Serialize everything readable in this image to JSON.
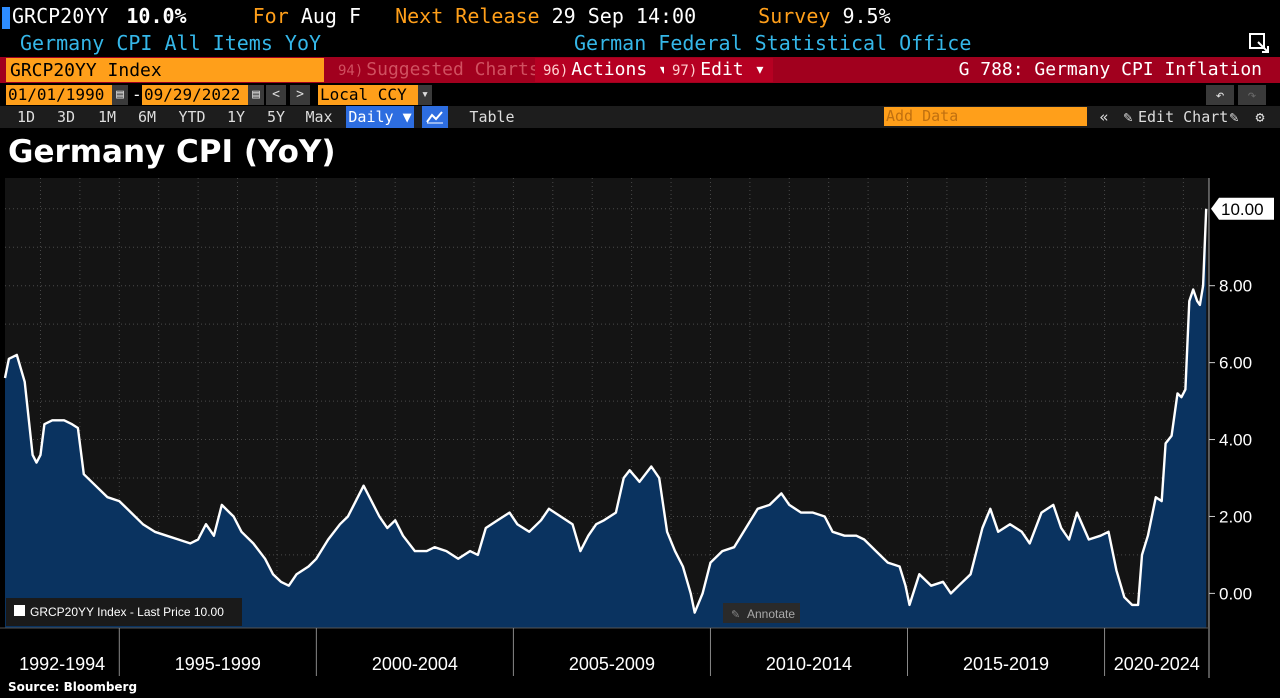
{
  "header": {
    "ticker": "GRCP20YY",
    "last_value": "10.0%",
    "for_label": "For",
    "for_value": "Aug F",
    "next_release_label": "Next Release",
    "next_release_value": "29 Sep 14:00",
    "survey_label": "Survey",
    "survey_value": "9.5%",
    "description": "Germany CPI All Items YoY",
    "source_agency": "German Federal Statistical Office"
  },
  "command_bar": {
    "security": "GRCP20YY Index",
    "suggested_num": "94)",
    "suggested_label": "Suggested Charts",
    "actions_num": "96)",
    "actions_label": "Actions ▾",
    "edit_num": "97)",
    "edit_label": "Edit ▾",
    "page_title": "G 788: Germany CPI Inflation"
  },
  "date_row": {
    "start_date": "01/01/1990",
    "separator": "-",
    "end_date": "09/29/2022",
    "currency": "Local CCY"
  },
  "toolbar": {
    "ranges": [
      "1D",
      "3D",
      "1M",
      "6M",
      "YTD",
      "1Y",
      "5Y",
      "Max"
    ],
    "frequency": "Daily ▼",
    "table_label": "Table",
    "add_data_placeholder": "Add Data",
    "edit_chart_label": "Edit Chart"
  },
  "chart_title": "Germany CPI (YoY)",
  "source": "Source: Bloomberg",
  "colors": {
    "line": "#ffffff",
    "area": "#0a3360",
    "accent_orange": "#ff9f1a",
    "bar_red": "#a1001e",
    "header_blue": "#35b7e8"
  },
  "chart_data": {
    "type": "area",
    "title": "Germany CPI (YoY)",
    "legend": "GRCP20YY Index - Last Price 10.00",
    "annotate_label": "Annotate",
    "last_price_label": "10.00",
    "yticks": [
      0,
      2,
      4,
      6,
      8
    ],
    "ytick_labels": [
      "0.00",
      "2.00",
      "4.00",
      "6.00",
      "8.00"
    ],
    "ylim": [
      -0.9,
      10.8
    ],
    "xlim": [
      1992.1,
      2022.65
    ],
    "x_periods": [
      {
        "label": "1992-1994",
        "start": 1992.1,
        "end": 1995.0
      },
      {
        "label": "1995-1999",
        "start": 1995.0,
        "end": 2000.0
      },
      {
        "label": "2000-2004",
        "start": 2000.0,
        "end": 2005.0
      },
      {
        "label": "2005-2009",
        "start": 2005.0,
        "end": 2010.0
      },
      {
        "label": "2010-2014",
        "start": 2010.0,
        "end": 2015.0
      },
      {
        "label": "2015-2019",
        "start": 2015.0,
        "end": 2020.0
      },
      {
        "label": "2020-2024",
        "start": 2020.0,
        "end": 2022.65
      }
    ],
    "series": [
      {
        "points": [
          [
            1992.1,
            5.6
          ],
          [
            1992.2,
            6.1
          ],
          [
            1992.4,
            6.2
          ],
          [
            1992.6,
            5.5
          ],
          [
            1992.8,
            3.6
          ],
          [
            1992.9,
            3.4
          ],
          [
            1993.0,
            3.6
          ],
          [
            1993.1,
            4.4
          ],
          [
            1993.3,
            4.5
          ],
          [
            1993.6,
            4.5
          ],
          [
            1993.8,
            4.4
          ],
          [
            1993.95,
            4.3
          ],
          [
            1994.1,
            3.1
          ],
          [
            1994.4,
            2.8
          ],
          [
            1994.7,
            2.5
          ],
          [
            1995.0,
            2.4
          ],
          [
            1995.3,
            2.1
          ],
          [
            1995.6,
            1.8
          ],
          [
            1995.9,
            1.6
          ],
          [
            1996.2,
            1.5
          ],
          [
            1996.5,
            1.4
          ],
          [
            1996.8,
            1.3
          ],
          [
            1997.0,
            1.4
          ],
          [
            1997.2,
            1.8
          ],
          [
            1997.4,
            1.5
          ],
          [
            1997.6,
            2.3
          ],
          [
            1997.8,
            2.1
          ],
          [
            1997.9,
            2.0
          ],
          [
            1998.1,
            1.6
          ],
          [
            1998.4,
            1.3
          ],
          [
            1998.7,
            0.9
          ],
          [
            1998.9,
            0.5
          ],
          [
            1999.1,
            0.3
          ],
          [
            1999.3,
            0.2
          ],
          [
            1999.5,
            0.5
          ],
          [
            1999.8,
            0.7
          ],
          [
            2000.0,
            0.9
          ],
          [
            2000.3,
            1.4
          ],
          [
            2000.6,
            1.8
          ],
          [
            2000.8,
            2.0
          ],
          [
            2001.0,
            2.4
          ],
          [
            2001.2,
            2.8
          ],
          [
            2001.4,
            2.4
          ],
          [
            2001.6,
            2.0
          ],
          [
            2001.8,
            1.7
          ],
          [
            2002.0,
            1.9
          ],
          [
            2002.2,
            1.5
          ],
          [
            2002.5,
            1.1
          ],
          [
            2002.8,
            1.1
          ],
          [
            2003.0,
            1.2
          ],
          [
            2003.3,
            1.1
          ],
          [
            2003.6,
            0.9
          ],
          [
            2003.9,
            1.1
          ],
          [
            2004.1,
            1.0
          ],
          [
            2004.3,
            1.7
          ],
          [
            2004.6,
            1.9
          ],
          [
            2004.9,
            2.1
          ],
          [
            2005.1,
            1.8
          ],
          [
            2005.4,
            1.6
          ],
          [
            2005.7,
            1.9
          ],
          [
            2005.9,
            2.2
          ],
          [
            2006.2,
            2.0
          ],
          [
            2006.5,
            1.8
          ],
          [
            2006.7,
            1.1
          ],
          [
            2006.9,
            1.5
          ],
          [
            2007.1,
            1.8
          ],
          [
            2007.3,
            1.9
          ],
          [
            2007.6,
            2.1
          ],
          [
            2007.8,
            3.0
          ],
          [
            2007.95,
            3.2
          ],
          [
            2008.2,
            2.9
          ],
          [
            2008.5,
            3.3
          ],
          [
            2008.7,
            3.0
          ],
          [
            2008.9,
            1.6
          ],
          [
            2009.1,
            1.1
          ],
          [
            2009.3,
            0.7
          ],
          [
            2009.5,
            0.0
          ],
          [
            2009.6,
            -0.5
          ],
          [
            2009.8,
            0.0
          ],
          [
            2010.0,
            0.8
          ],
          [
            2010.3,
            1.1
          ],
          [
            2010.6,
            1.2
          ],
          [
            2010.9,
            1.7
          ],
          [
            2011.2,
            2.2
          ],
          [
            2011.5,
            2.3
          ],
          [
            2011.8,
            2.6
          ],
          [
            2012.0,
            2.3
          ],
          [
            2012.3,
            2.1
          ],
          [
            2012.6,
            2.1
          ],
          [
            2012.9,
            2.0
          ],
          [
            2013.1,
            1.6
          ],
          [
            2013.4,
            1.5
          ],
          [
            2013.7,
            1.5
          ],
          [
            2013.9,
            1.4
          ],
          [
            2014.2,
            1.1
          ],
          [
            2014.5,
            0.8
          ],
          [
            2014.8,
            0.7
          ],
          [
            2014.95,
            0.2
          ],
          [
            2015.05,
            -0.3
          ],
          [
            2015.3,
            0.5
          ],
          [
            2015.6,
            0.2
          ],
          [
            2015.9,
            0.3
          ],
          [
            2016.1,
            0.0
          ],
          [
            2016.3,
            0.2
          ],
          [
            2016.6,
            0.5
          ],
          [
            2016.9,
            1.7
          ],
          [
            2017.1,
            2.2
          ],
          [
            2017.3,
            1.6
          ],
          [
            2017.6,
            1.8
          ],
          [
            2017.9,
            1.6
          ],
          [
            2018.1,
            1.3
          ],
          [
            2018.4,
            2.1
          ],
          [
            2018.7,
            2.3
          ],
          [
            2018.9,
            1.7
          ],
          [
            2019.1,
            1.4
          ],
          [
            2019.3,
            2.1
          ],
          [
            2019.6,
            1.4
          ],
          [
            2019.9,
            1.5
          ],
          [
            2020.1,
            1.6
          ],
          [
            2020.3,
            0.6
          ],
          [
            2020.5,
            -0.1
          ],
          [
            2020.7,
            -0.3
          ],
          [
            2020.85,
            -0.3
          ],
          [
            2020.95,
            1.0
          ],
          [
            2021.1,
            1.5
          ],
          [
            2021.3,
            2.5
          ],
          [
            2021.45,
            2.4
          ],
          [
            2021.55,
            3.9
          ],
          [
            2021.7,
            4.1
          ],
          [
            2021.85,
            5.2
          ],
          [
            2021.95,
            5.1
          ],
          [
            2022.05,
            5.3
          ],
          [
            2022.15,
            7.6
          ],
          [
            2022.25,
            7.9
          ],
          [
            2022.35,
            7.6
          ],
          [
            2022.42,
            7.5
          ],
          [
            2022.5,
            8.0
          ],
          [
            2022.58,
            10.0
          ]
        ]
      }
    ]
  }
}
